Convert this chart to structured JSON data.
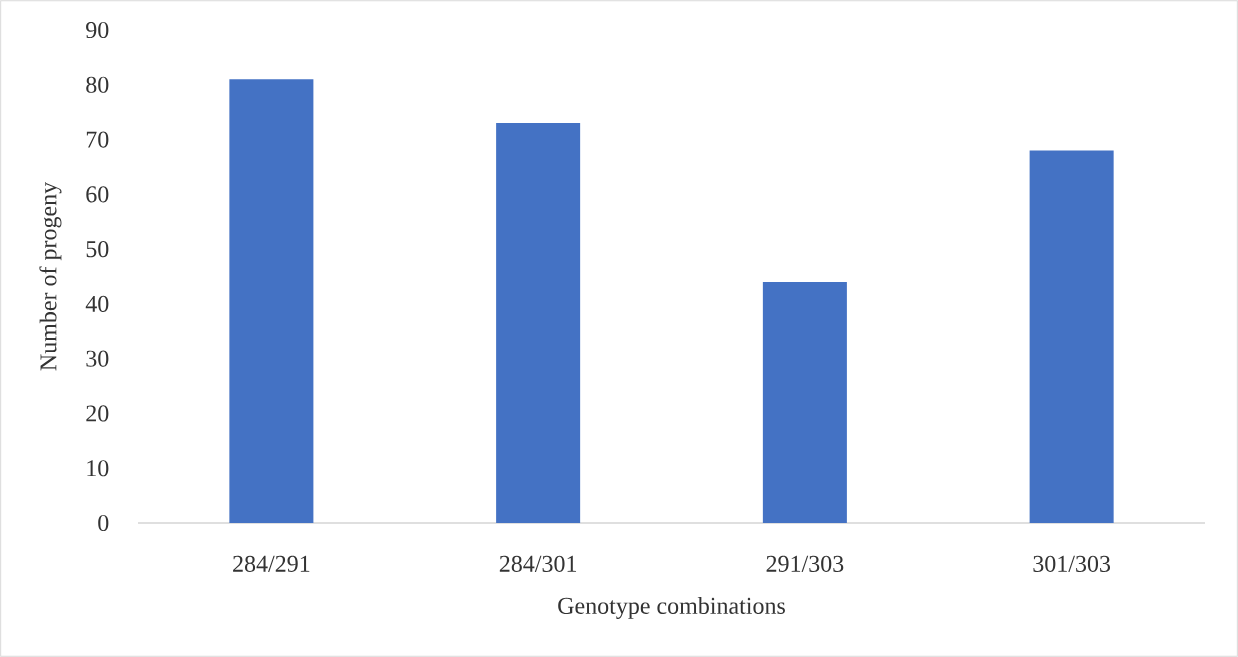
{
  "chart_data": {
    "type": "bar",
    "xlabel": "Genotype combinations",
    "ylabel": "Number of progeny",
    "categories": [
      "284/291",
      "284/301",
      "291/303",
      "301/303"
    ],
    "values": [
      81,
      73,
      44,
      68
    ],
    "color": "#4472c4",
    "ylim": [
      0,
      90
    ],
    "yticks": [
      0,
      10,
      20,
      30,
      40,
      50,
      60,
      70,
      80,
      90
    ],
    "grid": false
  }
}
